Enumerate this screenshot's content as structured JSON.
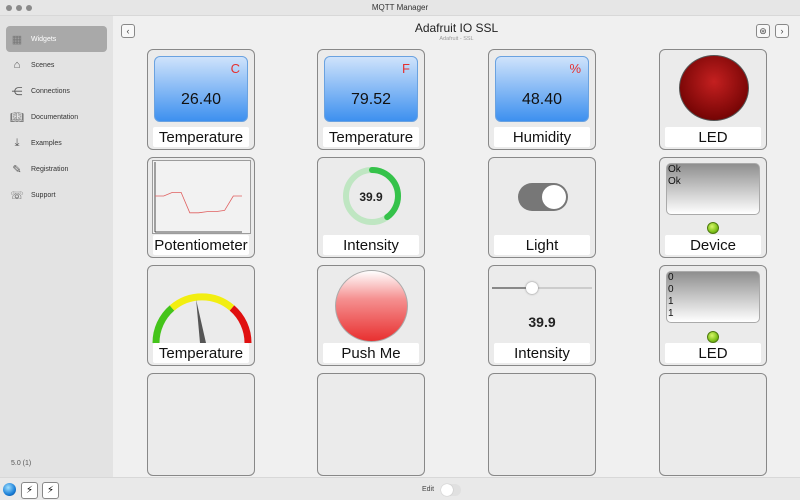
{
  "window": {
    "title": "MQTT Manager"
  },
  "sidebar": {
    "items": [
      {
        "label": "Widgets",
        "icon": "grid-icon",
        "active": true
      },
      {
        "label": "Scenes",
        "icon": "house-icon"
      },
      {
        "label": "Connections",
        "icon": "share-nodes-icon"
      },
      {
        "label": "Documentation",
        "icon": "book-icon"
      },
      {
        "label": "Examples",
        "icon": "download-tray-icon"
      },
      {
        "label": "Registration",
        "icon": "person-pen-icon"
      },
      {
        "label": "Support",
        "icon": "support-hand-icon"
      }
    ],
    "version": "5.0 (1)"
  },
  "header": {
    "title": "Adafruit IO SSL",
    "subtitle": "Adafruit - SSL"
  },
  "widgets": {
    "temp_c": {
      "label": "Temperature",
      "value": "26.40",
      "unit": "C"
    },
    "temp_f": {
      "label": "Temperature",
      "value": "79.52",
      "unit": "F"
    },
    "humidity": {
      "label": "Humidity",
      "value": "48.40",
      "unit": "%"
    },
    "led_red": {
      "label": "LED",
      "color": "#b01010"
    },
    "potentiometer": {
      "label": "Potentiometer",
      "values": [
        3,
        3,
        3.3,
        3.3,
        1.6,
        1.6,
        1.7,
        1.7,
        1.8,
        3,
        3
      ]
    },
    "intensity_ring": {
      "label": "Intensity",
      "value": "39.9",
      "fraction": 0.4
    },
    "light": {
      "label": "Light",
      "on": true
    },
    "device": {
      "label": "Device",
      "lines": [
        "Ok",
        "Ok"
      ]
    },
    "gauge": {
      "label": "Temperature",
      "needle_fraction": 0.45
    },
    "push": {
      "label": "Push Me"
    },
    "intensity_slider": {
      "label": "Intensity",
      "value": "39.9",
      "fraction": 0.4
    },
    "led_log": {
      "label": "LED",
      "lines": [
        "0",
        "0",
        "1",
        "1"
      ]
    }
  },
  "bottom": {
    "edit_label": "Edit",
    "edit_on": false
  }
}
